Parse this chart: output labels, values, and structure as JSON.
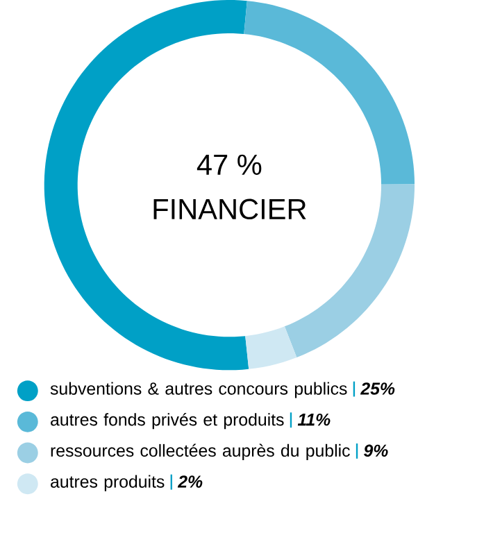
{
  "chart_data": {
    "type": "donut",
    "annotations": [
      "47 %",
      "FINANCIER"
    ],
    "categories": [
      "subventions & autres concours publics",
      "autres fonds privés et produits",
      "ressources collectées auprès du public",
      "autres produits"
    ],
    "values": [
      25,
      11,
      9,
      2
    ],
    "value_labels": [
      "25%",
      "11%",
      "9%",
      "2%"
    ],
    "colors": [
      "#00a0c6",
      "#5ab9d8",
      "#9bcfe4",
      "#cfe8f3"
    ],
    "legend": "bottom"
  }
}
